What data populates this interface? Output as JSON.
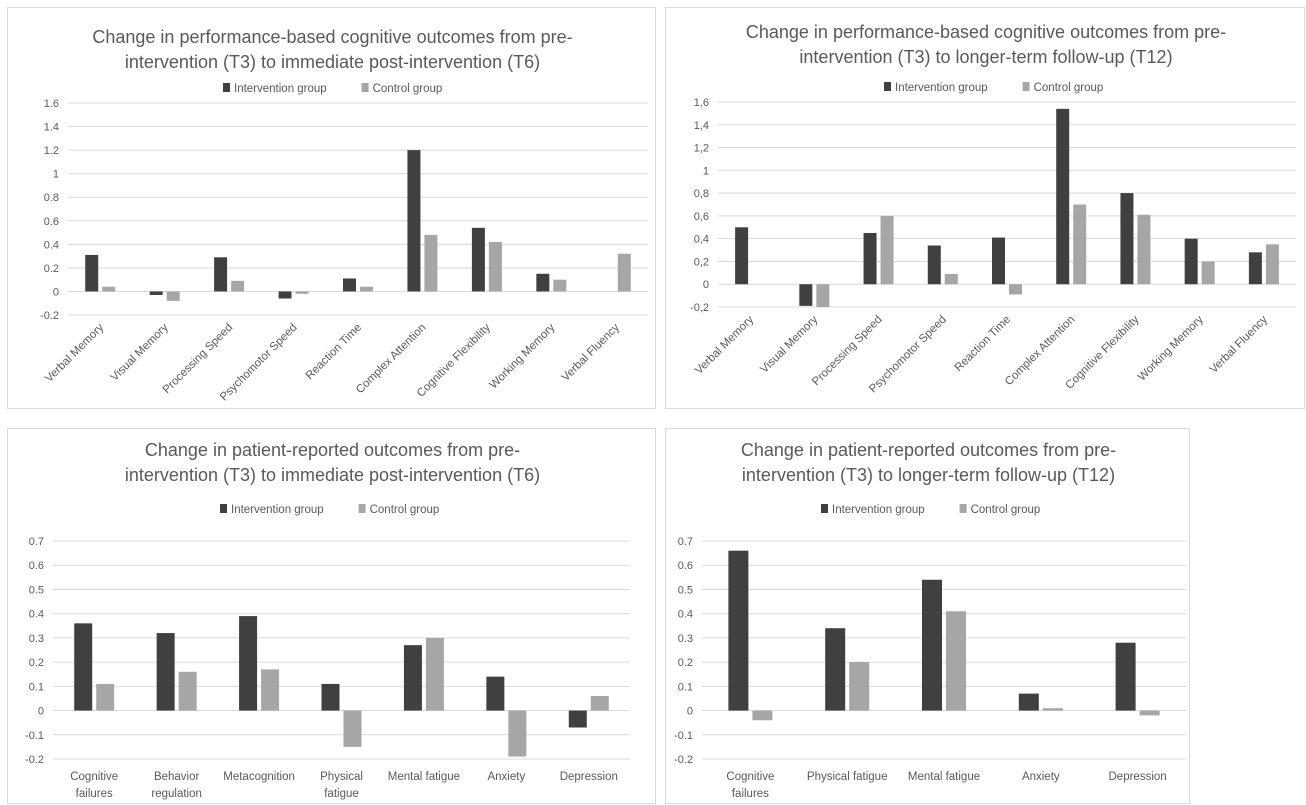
{
  "chart_data": [
    {
      "type": "bar",
      "title": [
        "Change in performance-based cognitive outcomes from pre-",
        "intervention (T3) to immediate post-intervention (T6)"
      ],
      "categories": [
        "Verbal Memory",
        "Visual Memory",
        "Processing Speed",
        "Psychomotor Speed",
        "Reaction Time",
        "Complex Attention",
        "Cognitive Flexibility",
        "Working Memory",
        "Verbal Fluency"
      ],
      "series": [
        {
          "name": "Intervention group",
          "color": "#404040",
          "values": [
            0.31,
            -0.03,
            0.29,
            -0.06,
            0.11,
            1.2,
            0.54,
            0.15,
            0
          ]
        },
        {
          "name": "Control group",
          "color": "#a6a6a6",
          "values": [
            0.04,
            -0.08,
            0.09,
            -0.02,
            0.04,
            0.48,
            0.42,
            0.1,
            0.32
          ]
        }
      ],
      "ylim": [
        -0.2,
        1.6
      ],
      "yticks": [
        "-0.2",
        "0",
        "0.2",
        "0.4",
        "0.6",
        "0.8",
        "1",
        "1.2",
        "1.4",
        "1.6"
      ],
      "legend": "top",
      "grid": true
    },
    {
      "type": "bar",
      "title": [
        "Change in performance-based cognitive outcomes from pre-",
        "intervention (T3) to longer-term follow-up (T12)"
      ],
      "categories": [
        "Verbal Memory",
        "Visual Memory",
        "Processing Speed",
        "Psychomotor Speed",
        "Reaction Time",
        "Complex Attention",
        "Cognitive Flexibility",
        "Working Memory",
        "Verbal Fluency"
      ],
      "series": [
        {
          "name": "Intervention group",
          "color": "#404040",
          "values": [
            0.5,
            -0.19,
            0.45,
            0.34,
            0.41,
            1.54,
            0.8,
            0.4,
            0.28
          ]
        },
        {
          "name": "Control group",
          "color": "#a6a6a6",
          "values": [
            0,
            -0.2,
            0.6,
            0.09,
            -0.09,
            0.7,
            0.61,
            0.2,
            0.35
          ]
        }
      ],
      "ylim": [
        -0.2,
        1.6
      ],
      "yticks": [
        "-0,2",
        "0",
        "0,2",
        "0,4",
        "0,6",
        "0,8",
        "1",
        "1,2",
        "1,4",
        "1,6"
      ],
      "legend": "top",
      "grid": true
    },
    {
      "type": "bar",
      "title": [
        "Change in patient-reported outcomes from pre-",
        "intervention (T3) to immediate post-intervention (T6)"
      ],
      "categories": [
        "Cognitive failures",
        "Behavior regulation",
        "Metacognition",
        "Physical fatigue",
        "Mental fatigue",
        "Anxiety",
        "Depression"
      ],
      "category_lines": [
        [
          "Cognitive",
          "failures"
        ],
        [
          "Behavior",
          "regulation"
        ],
        [
          "Metacognition"
        ],
        [
          "Physical",
          "fatigue"
        ],
        [
          "Mental fatigue"
        ],
        [
          "Anxiety"
        ],
        [
          "Depression"
        ]
      ],
      "series": [
        {
          "name": "Intervention group",
          "color": "#404040",
          "values": [
            0.36,
            0.32,
            0.39,
            0.11,
            0.27,
            0.14,
            -0.07
          ]
        },
        {
          "name": "Control group",
          "color": "#a6a6a6",
          "values": [
            0.11,
            0.16,
            0.17,
            -0.15,
            0.3,
            -0.19,
            0.06
          ]
        }
      ],
      "ylim": [
        -0.2,
        0.7
      ],
      "yticks": [
        "-0.2",
        "-0.1",
        "0",
        "0.1",
        "0.2",
        "0.3",
        "0.4",
        "0.5",
        "0.6",
        "0.7"
      ],
      "legend": "top",
      "grid": true
    },
    {
      "type": "bar",
      "title": [
        "Change in patient-reported outcomes from pre-",
        "intervention (T3) to longer-term follow-up (T12)"
      ],
      "categories": [
        "Cognitive failures",
        "Physical fatigue",
        "Mental fatigue",
        "Anxiety",
        "Depression"
      ],
      "category_lines": [
        [
          "Cognitive",
          "failures"
        ],
        [
          "Physical fatigue"
        ],
        [
          "Mental fatigue"
        ],
        [
          "Anxiety"
        ],
        [
          "Depression"
        ]
      ],
      "series": [
        {
          "name": "Intervention group",
          "color": "#404040",
          "values": [
            0.66,
            0.34,
            0.54,
            0.07,
            0.28
          ]
        },
        {
          "name": "Control group",
          "color": "#a6a6a6",
          "values": [
            -0.04,
            0.2,
            0.41,
            0.01,
            -0.02
          ]
        }
      ],
      "ylim": [
        -0.2,
        0.7
      ],
      "yticks": [
        "-0.2",
        "-0.1",
        "0",
        "0.1",
        "0.2",
        "0.3",
        "0.4",
        "0.5",
        "0.6",
        "0.7"
      ],
      "legend": "top",
      "grid": true
    }
  ]
}
